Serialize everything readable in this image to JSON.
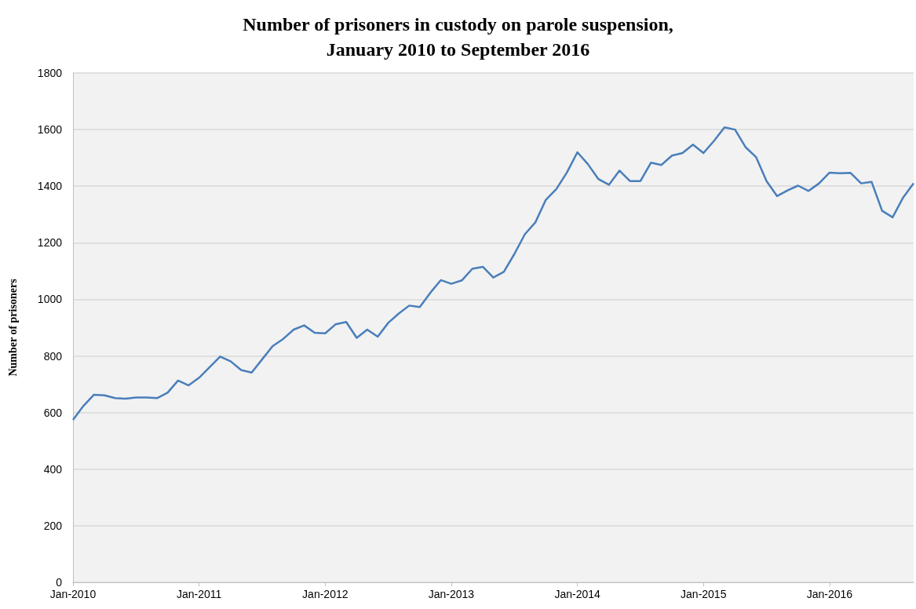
{
  "chart_data": {
    "type": "line",
    "title": "Number of prisoners in custody on parole suspension,\nJanuary 2010 to September 2016",
    "ylabel": "Number of prisoners",
    "categories": [
      "Jan-2010",
      null,
      null,
      null,
      null,
      null,
      null,
      null,
      null,
      null,
      null,
      null,
      "Jan-2011",
      null,
      null,
      null,
      null,
      null,
      null,
      null,
      null,
      null,
      null,
      null,
      "Jan-2012",
      null,
      null,
      null,
      null,
      null,
      null,
      null,
      null,
      null,
      null,
      null,
      "Jan-2013",
      null,
      null,
      null,
      null,
      null,
      null,
      null,
      null,
      null,
      null,
      null,
      "Jan-2014",
      null,
      null,
      null,
      null,
      null,
      null,
      null,
      null,
      null,
      null,
      null,
      "Jan-2015",
      null,
      null,
      null,
      null,
      null,
      null,
      null,
      null,
      null,
      null,
      null,
      "Jan-2016",
      null,
      null,
      null,
      null,
      null,
      null,
      null,
      null
    ],
    "series": [
      {
        "color": "#4a7ebb",
        "values": [
          574,
          624,
          663,
          661,
          651,
          649,
          653,
          653,
          651,
          670,
          713,
          696,
          723,
          760,
          798,
          781,
          750,
          741,
          788,
          835,
          860,
          893,
          908,
          882,
          880,
          912,
          920,
          864,
          893,
          868,
          917,
          950,
          978,
          973,
          1023,
          1068,
          1055,
          1067,
          1108,
          1115,
          1077,
          1097,
          1160,
          1230,
          1272,
          1352,
          1390,
          1448,
          1520,
          1478,
          1425,
          1405,
          1455,
          1418,
          1418,
          1483,
          1475,
          1508,
          1517,
          1547,
          1517,
          1560,
          1608,
          1600,
          1538,
          1503,
          1418,
          1365,
          1385,
          1402,
          1383,
          1410,
          1448,
          1446,
          1447,
          1410,
          1415,
          1313,
          1290,
          1360,
          1410
        ]
      }
    ],
    "ylim": [
      0,
      1800
    ],
    "yticks": [
      0,
      200,
      400,
      600,
      800,
      1000,
      1200,
      1400,
      1600,
      1800
    ],
    "grid": "y",
    "marker": "none",
    "line_style": "solid"
  }
}
